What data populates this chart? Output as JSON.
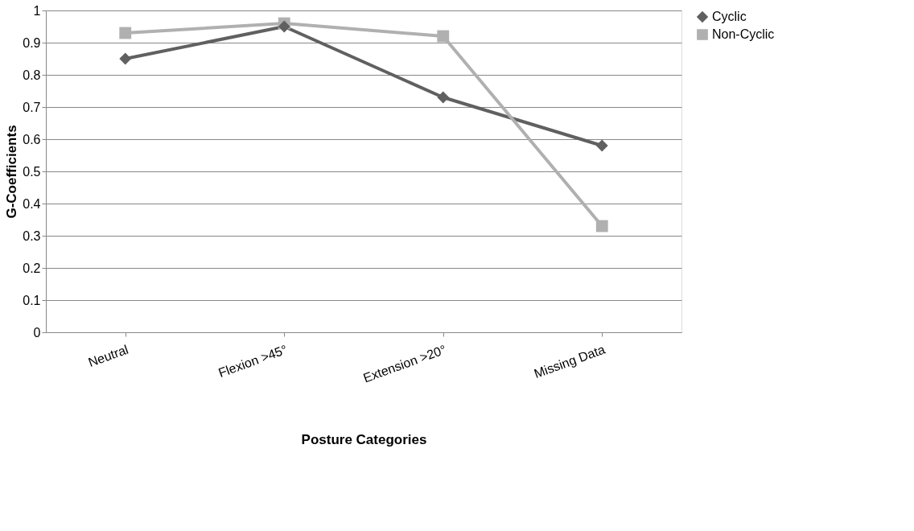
{
  "chart_data": {
    "type": "line",
    "xlabel": "Posture Categories",
    "ylabel": "G-Coefficients",
    "categories": [
      "Neutral",
      "Flexion >45°",
      "Extension >20°",
      "Missing Data"
    ],
    "series": [
      {
        "name": "Cyclic",
        "color": "#606060",
        "marker": "diamond",
        "values": [
          0.85,
          0.95,
          0.73,
          0.58
        ]
      },
      {
        "name": "Non-Cyclic",
        "color": "#b0b0b0",
        "marker": "square",
        "values": [
          0.93,
          0.96,
          0.92,
          0.33
        ]
      }
    ],
    "ylim": [
      0,
      1
    ],
    "yticks": [
      0,
      0.1,
      0.2,
      0.3,
      0.4,
      0.5,
      0.6,
      0.7,
      0.8,
      0.9,
      1
    ],
    "grid": "y",
    "legend": "right",
    "line_style": "solid"
  }
}
